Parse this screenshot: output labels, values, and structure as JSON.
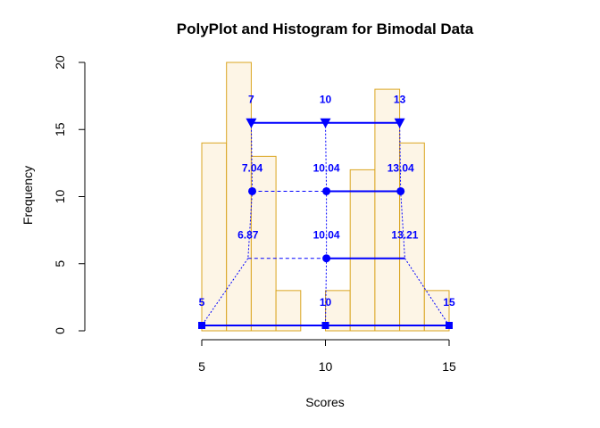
{
  "chart_data": {
    "type": "bar",
    "title": "PolyPlot and Histogram for Bimodal Data",
    "xlabel": "Scores",
    "ylabel": "Frequency",
    "xlim": [
      5,
      15
    ],
    "ylim": [
      0,
      20
    ],
    "x_ticks": [
      "5",
      "10",
      "15"
    ],
    "y_ticks": [
      "0",
      "5",
      "10",
      "15",
      "20"
    ],
    "grid": false,
    "histogram": {
      "bin_width": 1,
      "fill_color": "#fdf5e6",
      "edge_color": "#daa520",
      "bins": [
        {
          "start": 5,
          "end": 6,
          "count": 14
        },
        {
          "start": 6,
          "end": 7,
          "count": 20
        },
        {
          "start": 7,
          "end": 8,
          "count": 13
        },
        {
          "start": 8,
          "end": 9,
          "count": 3
        },
        {
          "start": 9,
          "end": 10,
          "count": 0
        },
        {
          "start": 10,
          "end": 11,
          "count": 3
        },
        {
          "start": 11,
          "end": 12,
          "count": 12
        },
        {
          "start": 12,
          "end": 13,
          "count": 18
        },
        {
          "start": 13,
          "end": 14,
          "count": 14
        },
        {
          "start": 14,
          "end": 15,
          "count": 3
        }
      ]
    },
    "overlay_color": "#0000ff",
    "overlay": [
      {
        "level": "triangles",
        "y": 15.5,
        "marker": "triangle-down",
        "points": [
          {
            "x": 7,
            "label": "7"
          },
          {
            "x": 10,
            "label": "10"
          },
          {
            "x": 13,
            "label": "13"
          }
        ],
        "segments": [
          {
            "from": 7,
            "to": 10,
            "style": "solid"
          },
          {
            "from": 10,
            "to": 13,
            "style": "solid"
          }
        ]
      },
      {
        "level": "circles-upper",
        "y": 10.4,
        "marker": "circle",
        "points": [
          {
            "x": 7.04,
            "label": "7.04"
          },
          {
            "x": 10.04,
            "label": "10.04"
          },
          {
            "x": 13.04,
            "label": "13.04"
          }
        ],
        "segments": [
          {
            "from": 7.04,
            "to": 10.04,
            "style": "dashed"
          },
          {
            "from": 10.04,
            "to": 13.04,
            "style": "solid"
          }
        ]
      },
      {
        "level": "circle-lower",
        "y": 5.4,
        "marker": "circle",
        "points": [
          {
            "x": 10.04,
            "label": "10.04"
          }
        ],
        "extra_labels": [
          {
            "x": 6.87,
            "label": "6.87"
          },
          {
            "x": 13.21,
            "label": "13.21"
          }
        ],
        "segments": [
          {
            "from": 6.87,
            "to": 10.04,
            "style": "dashed"
          },
          {
            "from": 10.04,
            "to": 13.21,
            "style": "solid"
          }
        ]
      },
      {
        "level": "squares",
        "y": 0.4,
        "marker": "square",
        "points": [
          {
            "x": 5,
            "label": "5"
          },
          {
            "x": 10,
            "label": "10"
          },
          {
            "x": 15,
            "label": "15"
          }
        ],
        "segments": [
          {
            "from": 5,
            "to": 15,
            "style": "solid"
          }
        ]
      }
    ],
    "connectors": [
      {
        "points": [
          [
            7,
            15.5
          ],
          [
            7.04,
            10.4
          ]
        ],
        "style": "dotted"
      },
      {
        "points": [
          [
            10,
            15.5
          ],
          [
            10.04,
            10.4
          ]
        ],
        "style": "dotted"
      },
      {
        "points": [
          [
            13,
            15.5
          ],
          [
            13.04,
            10.4
          ]
        ],
        "style": "dotted"
      },
      {
        "points": [
          [
            7.04,
            10.4
          ],
          [
            6.87,
            5.4
          ]
        ],
        "style": "dotted"
      },
      {
        "points": [
          [
            10.04,
            10.4
          ],
          [
            10.04,
            5.4
          ]
        ],
        "style": "dotted"
      },
      {
        "points": [
          [
            13.04,
            10.4
          ],
          [
            13.21,
            5.4
          ]
        ],
        "style": "dotted"
      },
      {
        "points": [
          [
            6.87,
            5.4
          ],
          [
            5,
            0.4
          ]
        ],
        "style": "dotted"
      },
      {
        "points": [
          [
            10.04,
            5.4
          ],
          [
            10,
            0.4
          ]
        ],
        "style": "dotted"
      },
      {
        "points": [
          [
            13.21,
            5.4
          ],
          [
            15,
            0.4
          ]
        ],
        "style": "dotted"
      }
    ]
  }
}
